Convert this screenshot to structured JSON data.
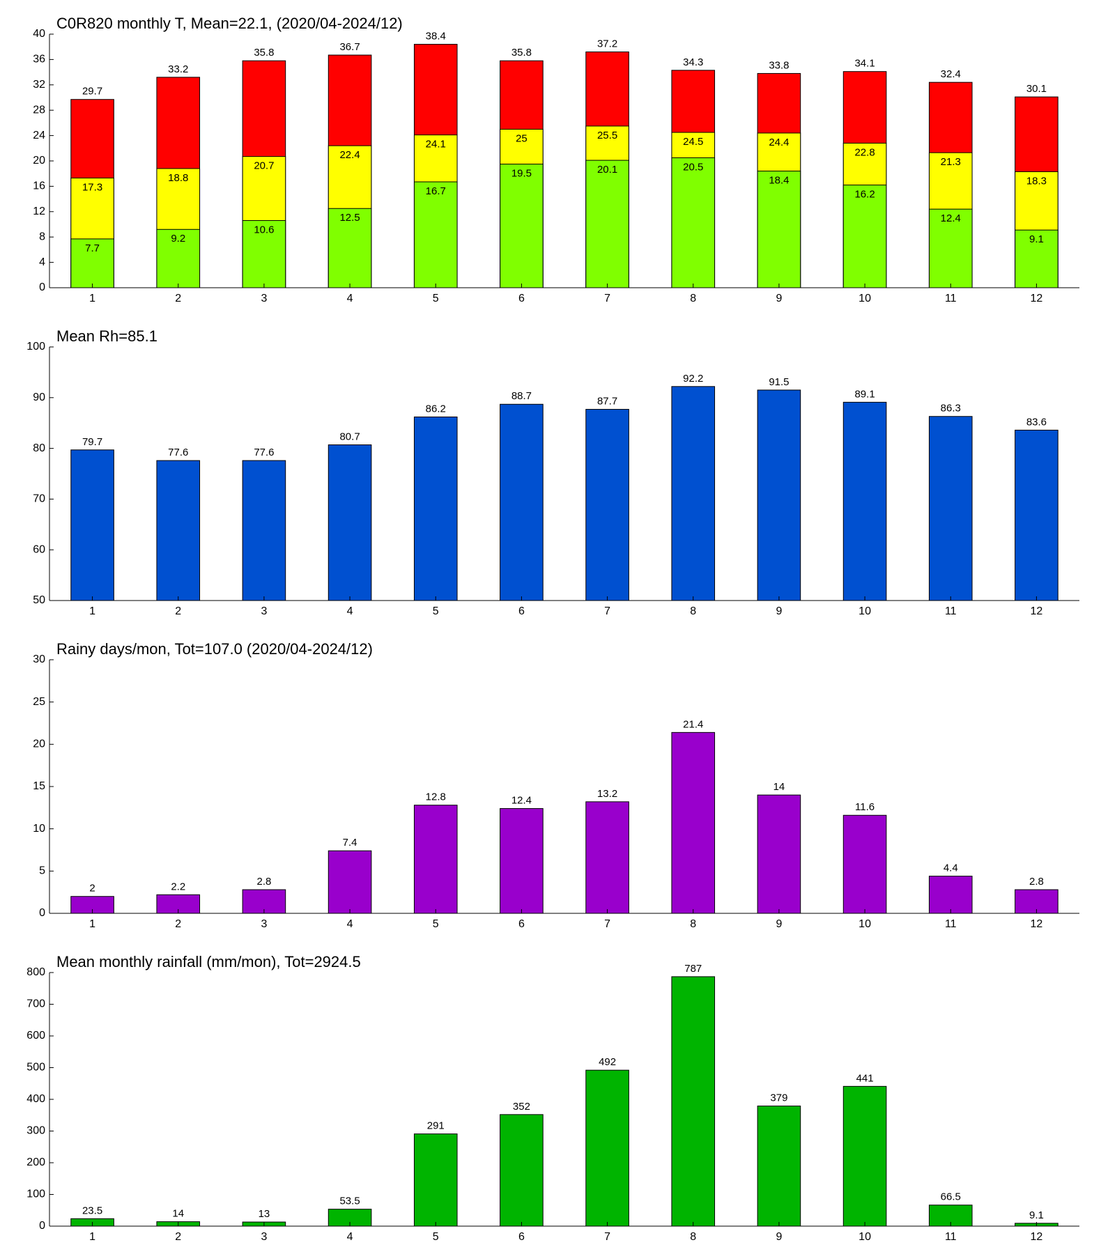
{
  "chart_data": [
    {
      "type": "overlay_bar",
      "title": "C0R820 monthly T, Mean=22.1, (2020/04-2024/12)",
      "categories": [
        "1",
        "2",
        "3",
        "4",
        "5",
        "6",
        "7",
        "8",
        "9",
        "10",
        "11",
        "12"
      ],
      "series": [
        {
          "color": "#ff0000",
          "label_position": "above",
          "values": [
            29.7,
            33.2,
            35.8,
            36.7,
            38.4,
            35.8,
            37.2,
            34.3,
            33.8,
            34.1,
            32.4,
            30.1
          ]
        },
        {
          "color": "#ffff00",
          "label_position": "inside",
          "values": [
            17.3,
            18.8,
            20.7,
            22.4,
            24.1,
            25,
            25.5,
            24.5,
            24.4,
            22.8,
            21.3,
            18.3
          ]
        },
        {
          "color": "#80ff00",
          "label_position": "inside",
          "values": [
            7.7,
            9.2,
            10.6,
            12.5,
            16.7,
            19.5,
            20.1,
            20.5,
            18.4,
            16.2,
            12.4,
            9.1
          ]
        }
      ],
      "ylim": [
        0,
        40
      ],
      "yticks": [
        0,
        4,
        8,
        12,
        16,
        20,
        24,
        28,
        32,
        36,
        40
      ]
    },
    {
      "type": "bar",
      "title": "Mean Rh=85.1",
      "categories": [
        "1",
        "2",
        "3",
        "4",
        "5",
        "6",
        "7",
        "8",
        "9",
        "10",
        "11",
        "12"
      ],
      "values": [
        79.7,
        77.6,
        77.6,
        80.7,
        86.2,
        88.7,
        87.7,
        92.2,
        91.5,
        89.1,
        86.3,
        83.6
      ],
      "color": "#0050d0",
      "ylim": [
        50,
        100
      ],
      "yticks": [
        50,
        60,
        70,
        80,
        90,
        100
      ]
    },
    {
      "type": "bar",
      "title": "Rainy days/mon, Tot=107.0 (2020/04-2024/12)",
      "categories": [
        "1",
        "2",
        "3",
        "4",
        "5",
        "6",
        "7",
        "8",
        "9",
        "10",
        "11",
        "12"
      ],
      "values": [
        2,
        2.2,
        2.8,
        7.4,
        12.8,
        12.4,
        13.2,
        21.4,
        14,
        11.6,
        4.4,
        2.8
      ],
      "color": "#9900cc",
      "ylim": [
        0,
        30
      ],
      "yticks": [
        0,
        5,
        10,
        15,
        20,
        25,
        30
      ]
    },
    {
      "type": "bar",
      "title": "Mean monthly rainfall (mm/mon), Tot=2924.5",
      "categories": [
        "1",
        "2",
        "3",
        "4",
        "5",
        "6",
        "7",
        "8",
        "9",
        "10",
        "11",
        "12"
      ],
      "values": [
        23.5,
        14,
        13,
        53.5,
        291,
        352,
        492,
        787,
        379,
        441,
        66.5,
        9.1
      ],
      "color": "#00b400",
      "ylim": [
        0,
        800
      ],
      "yticks": [
        0,
        100,
        200,
        300,
        400,
        500,
        600,
        700,
        800
      ]
    }
  ]
}
